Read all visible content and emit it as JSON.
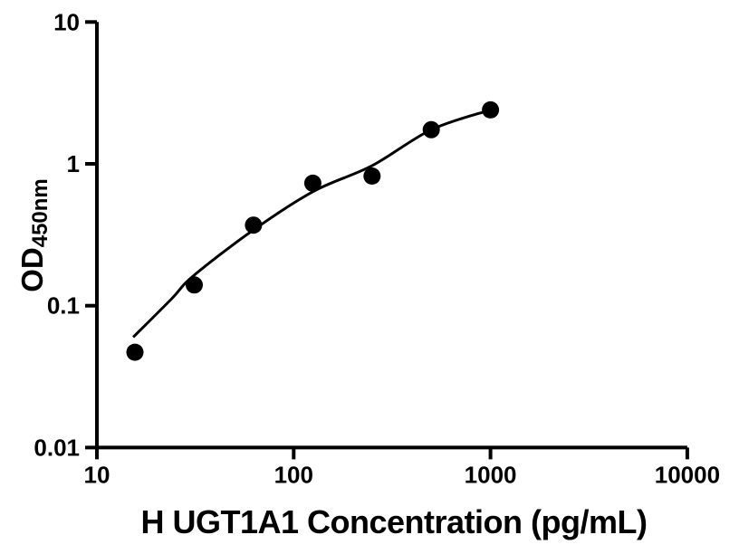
{
  "figure": {
    "background_color": "#ffffff",
    "foreground_color": "#000000"
  },
  "axes": {
    "x": {
      "title": "H UGT1A1 Concentration (pg/mL)",
      "scale": "log",
      "min": 10,
      "max": 10000,
      "tick_values": [
        10,
        100,
        1000,
        10000
      ],
      "tick_labels": [
        "10",
        "100",
        "1000",
        "10000"
      ]
    },
    "y": {
      "title_main": "OD",
      "title_sub": "450nm",
      "scale": "log",
      "min": 0.01,
      "max": 10,
      "tick_values": [
        10,
        1,
        0.1,
        0.01
      ],
      "tick_labels": [
        "10",
        "1",
        "0.1",
        "0.01"
      ]
    }
  },
  "chart_data": {
    "type": "scatter",
    "title": "",
    "xlabel": "H UGT1A1 Concentration (pg/mL)",
    "ylabel": "OD450nm",
    "x_scale": "log",
    "y_scale": "log",
    "xlim": [
      10,
      10000
    ],
    "ylim": [
      0.01,
      10
    ],
    "grid": false,
    "legend": false,
    "series": [
      {
        "name": "standard-points",
        "type": "scatter",
        "x": [
          15.6,
          31.25,
          62.5,
          125,
          250,
          500,
          1000
        ],
        "y": [
          0.047,
          0.14,
          0.37,
          0.73,
          0.82,
          1.74,
          2.4
        ],
        "marker": {
          "shape": "circle",
          "radius_px": 9.5,
          "color": "#000000"
        }
      },
      {
        "name": "fit-curve",
        "type": "line",
        "points": [
          [
            15.3,
            0.06
          ],
          [
            24,
            0.112
          ],
          [
            31,
            0.163
          ],
          [
            63,
            0.345
          ],
          [
            126,
            0.64
          ],
          [
            250,
            0.97
          ],
          [
            500,
            1.74
          ],
          [
            1000,
            2.4
          ]
        ],
        "stroke_px": 3,
        "color": "#000000"
      }
    ]
  }
}
